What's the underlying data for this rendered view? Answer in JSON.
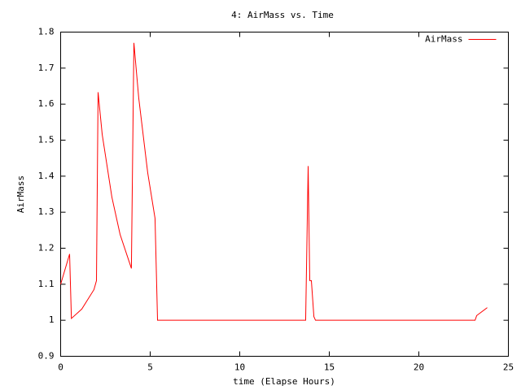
{
  "chart_data": {
    "type": "line",
    "title": "4: AirMass vs. Time",
    "x_label": "time (Elapse Hours)",
    "y_label": "AirMass",
    "x": [
      0,
      0.5,
      0.6,
      1.18,
      1.86,
      2.0,
      2.09,
      2.32,
      2.86,
      3.32,
      3.95,
      4.09,
      4.36,
      4.86,
      5.27,
      5.41,
      13.68,
      13.82,
      13.91,
      14.0,
      14.14,
      14.23,
      23.14,
      23.23,
      23.82
    ],
    "series": [
      {
        "name": "AirMass",
        "color": "#ff0000",
        "values": [
          1.1,
          1.184,
          1.005,
          1.031,
          1.085,
          1.11,
          1.633,
          1.516,
          1.342,
          1.238,
          1.144,
          1.77,
          1.617,
          1.41,
          1.283,
          1.0,
          1.0,
          1.428,
          1.11,
          1.11,
          1.01,
          1.0,
          1.0,
          1.013,
          1.035
        ]
      }
    ],
    "xlim": [
      0,
      25
    ],
    "xticks": [
      0,
      5,
      10,
      15,
      20,
      25
    ],
    "ylim": [
      0.9,
      1.8
    ],
    "yticks": [
      0.9,
      1,
      1.1,
      1.2,
      1.3,
      1.4,
      1.5,
      1.6,
      1.7,
      1.8
    ],
    "legend": "top-right"
  }
}
